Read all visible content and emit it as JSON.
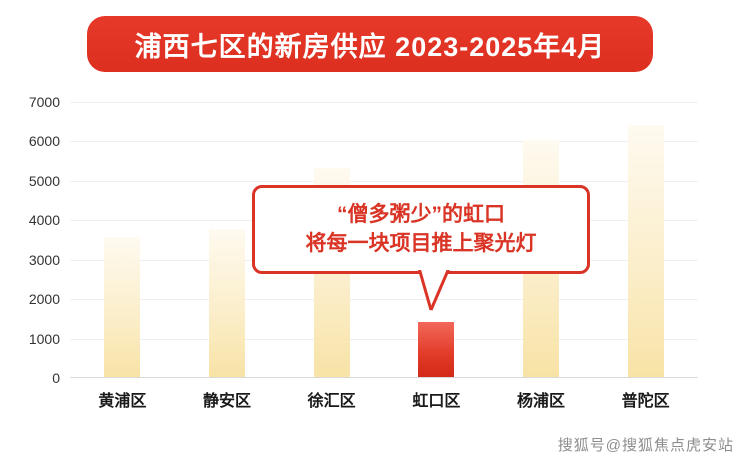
{
  "banner": {
    "title": "浦西七区的新房供应 2023-2025年4月"
  },
  "chart_data": {
    "type": "bar",
    "title": "浦西七区的新房供应 2023-2025年4月",
    "categories": [
      "黄浦区",
      "静安区",
      "徐汇区",
      "虹口区",
      "杨浦区",
      "普陀区"
    ],
    "values": [
      3550,
      3750,
      5300,
      1400,
      6000,
      6400
    ],
    "highlight_index": 3,
    "highlight_category": "虹口区",
    "xlabel": "",
    "ylabel": "",
    "ylim": [
      0,
      7000
    ],
    "ytick_step": 1000,
    "grid": true,
    "legend": "none",
    "bar_color": "#f8e3a6",
    "highlight_color": "#d42a18",
    "annotation": "“僧多粥少”的虹口 将每一块项目推上聚光灯"
  },
  "callout": {
    "line1": "“僧多粥少”的虹口",
    "line2": "将每一块项目推上聚光灯"
  },
  "watermark": "搜狐号@搜狐焦点虎安站",
  "colors": {
    "banner_red": "#dd2f1f",
    "callout_red": "#d93425",
    "bar_yellow": "#f8e3a6",
    "bar_red": "#d42a18"
  }
}
